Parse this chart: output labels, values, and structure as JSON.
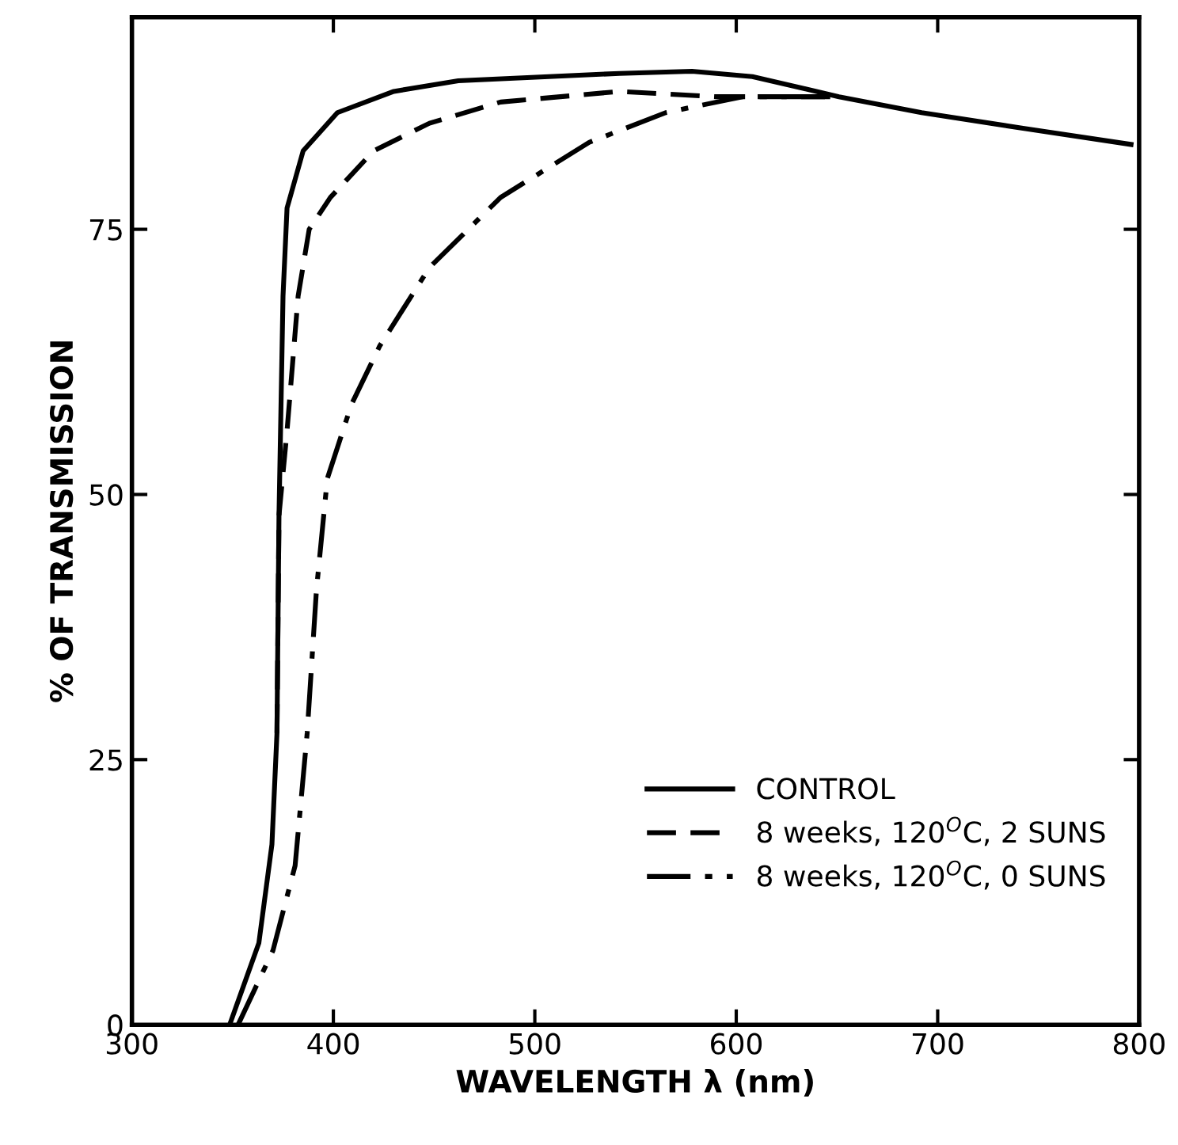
{
  "chart_data": {
    "type": "line",
    "xlabel": "WAVELENGTH λ (nm)",
    "ylabel": "% OF TRANSMISSION",
    "xlim": [
      300,
      800
    ],
    "ylim": [
      0,
      95
    ],
    "xticks": [
      300,
      400,
      500,
      600,
      700,
      800
    ],
    "yticks": [
      0,
      25,
      50,
      75
    ],
    "grid": false,
    "legend": "bottom right",
    "marker": "none",
    "series": [
      {
        "name": "CONTROL",
        "color": "#000000",
        "line_style": "solid",
        "x": [
          348.5,
          363,
          369.5,
          372,
          373,
          375,
          377,
          385,
          402,
          430,
          462,
          542,
          578,
          608,
          651,
          692,
          743,
          796
        ],
        "values": [
          0,
          7.7,
          17,
          27.5,
          48,
          68.7,
          77,
          82.4,
          86,
          88,
          89,
          89.7,
          89.9,
          89.4,
          87.5,
          86,
          84.5,
          83
        ]
      },
      {
        "name": "8 weeks, 120$^{O}$C, 2 SUNS",
        "color": "#000000",
        "line_style": "dashed",
        "x": [
          372,
          373,
          377,
          382.5,
          388,
          398.5,
          420,
          447.7,
          483,
          542,
          590,
          651
        ],
        "values": [
          27.5,
          48,
          56,
          68.7,
          75,
          78,
          82.4,
          85,
          87,
          88,
          87.5,
          87.5
        ]
      },
      {
        "name": "8 weeks, 120$^{O}$C, 0 SUNS",
        "color": "#000000",
        "line_style": "dashdot",
        "x": [
          352.7,
          370,
          381,
          387,
          391.6,
          397,
          409,
          423,
          447.7,
          483,
          527,
          565,
          603,
          651
        ],
        "values": [
          0,
          7,
          15,
          27.5,
          41,
          51.5,
          58.5,
          64,
          71.4,
          78,
          83.2,
          86,
          87.5,
          87.5
        ]
      }
    ]
  }
}
